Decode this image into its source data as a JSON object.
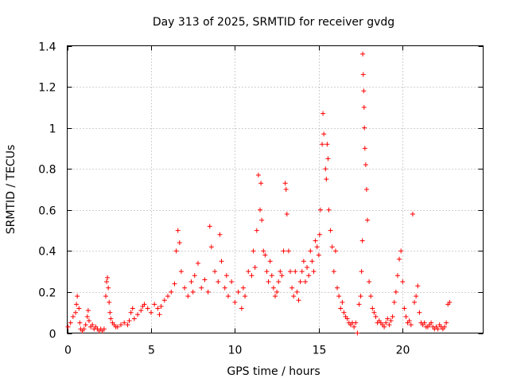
{
  "chart_data": {
    "type": "scatter",
    "title": "Day 313 of 2025, SRMTID for receiver gvdg",
    "xlabel": "GPS time / hours",
    "ylabel": "SRMTID / TECUs",
    "xlim": [
      0,
      24.8
    ],
    "ylim": [
      0,
      1.4
    ],
    "x_ticks": [
      0,
      5,
      10,
      15,
      20
    ],
    "x_tick_labels": [
      "0",
      "5",
      "10",
      "15",
      "20"
    ],
    "y_ticks": [
      0,
      0.2,
      0.4,
      0.6,
      0.8,
      1,
      1.2,
      1.4
    ],
    "y_tick_labels": [
      "0",
      "0.2",
      "0.4",
      "0.6",
      "0.8",
      "1",
      "1.2",
      "1.4"
    ],
    "grid": true,
    "marker": "+",
    "marker_color": "#ff0000",
    "series": [
      {
        "name": "SRMTID",
        "x": [
          0.05,
          0.2,
          0.35,
          0.5,
          0.55,
          0.6,
          0.7,
          0.75,
          0.8,
          0.9,
          1.0,
          1.1,
          1.2,
          1.25,
          1.3,
          1.4,
          1.5,
          1.6,
          1.7,
          1.8,
          1.9,
          2.0,
          2.1,
          2.2,
          2.3,
          2.35,
          2.4,
          2.45,
          2.5,
          2.55,
          2.6,
          2.7,
          2.8,
          2.9,
          3.0,
          3.2,
          3.4,
          3.6,
          3.7,
          3.8,
          3.9,
          4.0,
          4.2,
          4.4,
          4.5,
          4.6,
          4.8,
          5.0,
          5.2,
          5.4,
          5.5,
          5.6,
          5.8,
          6.0,
          6.2,
          6.4,
          6.5,
          6.6,
          6.7,
          6.8,
          7.0,
          7.2,
          7.4,
          7.5,
          7.6,
          7.8,
          8.0,
          8.2,
          8.4,
          8.5,
          8.6,
          8.8,
          9.0,
          9.1,
          9.2,
          9.4,
          9.5,
          9.6,
          9.8,
          10.0,
          10.2,
          10.4,
          10.5,
          10.6,
          10.8,
          11.0,
          11.1,
          11.2,
          11.3,
          11.4,
          11.5,
          11.55,
          11.6,
          11.7,
          11.8,
          11.9,
          12.0,
          12.1,
          12.2,
          12.3,
          12.4,
          12.5,
          12.6,
          12.7,
          12.8,
          12.9,
          13.0,
          13.05,
          13.1,
          13.2,
          13.3,
          13.4,
          13.5,
          13.6,
          13.7,
          13.8,
          13.9,
          14.0,
          14.1,
          14.2,
          14.3,
          14.4,
          14.5,
          14.6,
          14.7,
          14.8,
          14.9,
          15.0,
          15.05,
          15.1,
          15.2,
          15.25,
          15.3,
          15.4,
          15.45,
          15.5,
          15.55,
          15.6,
          15.7,
          15.8,
          15.9,
          16.0,
          16.1,
          16.2,
          16.3,
          16.4,
          16.5,
          16.6,
          16.7,
          16.8,
          16.9,
          17.0,
          17.1,
          17.2,
          17.3,
          17.4,
          17.5,
          17.55,
          17.6,
          17.62,
          17.65,
          17.68,
          17.7,
          17.72,
          17.75,
          17.8,
          17.85,
          17.9,
          18.0,
          18.1,
          18.2,
          18.3,
          18.4,
          18.5,
          18.6,
          18.7,
          18.8,
          18.9,
          19.0,
          19.1,
          19.2,
          19.3,
          19.4,
          19.5,
          19.6,
          19.7,
          19.8,
          19.9,
          20.0,
          20.1,
          20.2,
          20.3,
          20.4,
          20.5,
          20.6,
          20.7,
          20.8,
          20.9,
          21.0,
          21.1,
          21.2,
          21.3,
          21.4,
          21.5,
          21.6,
          21.7,
          21.8,
          21.9,
          22.0,
          22.1,
          22.2,
          22.3,
          22.4,
          22.5,
          22.6,
          22.7,
          22.8
        ],
        "y": [
          0.03,
          0.05,
          0.08,
          0.1,
          0.14,
          0.18,
          0.12,
          0.05,
          0.02,
          0.01,
          0.02,
          0.04,
          0.08,
          0.11,
          0.06,
          0.03,
          0.04,
          0.02,
          0.03,
          0.02,
          0.01,
          0.02,
          0.01,
          0.02,
          0.18,
          0.25,
          0.27,
          0.22,
          0.15,
          0.1,
          0.07,
          0.05,
          0.04,
          0.03,
          0.03,
          0.04,
          0.05,
          0.04,
          0.06,
          0.1,
          0.12,
          0.07,
          0.09,
          0.11,
          0.13,
          0.14,
          0.12,
          0.1,
          0.14,
          0.12,
          0.09,
          0.13,
          0.16,
          0.18,
          0.2,
          0.24,
          0.4,
          0.5,
          0.44,
          0.3,
          0.22,
          0.18,
          0.25,
          0.2,
          0.28,
          0.34,
          0.22,
          0.26,
          0.2,
          0.52,
          0.42,
          0.3,
          0.25,
          0.48,
          0.35,
          0.22,
          0.28,
          0.18,
          0.25,
          0.15,
          0.2,
          0.12,
          0.22,
          0.18,
          0.3,
          0.28,
          0.4,
          0.32,
          0.5,
          0.77,
          0.6,
          0.73,
          0.55,
          0.4,
          0.38,
          0.3,
          0.25,
          0.35,
          0.28,
          0.22,
          0.18,
          0.2,
          0.25,
          0.3,
          0.28,
          0.4,
          0.73,
          0.7,
          0.58,
          0.4,
          0.3,
          0.22,
          0.18,
          0.3,
          0.2,
          0.16,
          0.25,
          0.3,
          0.35,
          0.25,
          0.32,
          0.28,
          0.4,
          0.35,
          0.3,
          0.45,
          0.42,
          0.38,
          0.48,
          0.6,
          0.92,
          1.07,
          0.97,
          0.8,
          0.75,
          0.92,
          0.85,
          0.6,
          0.5,
          0.42,
          0.3,
          0.4,
          0.22,
          0.18,
          0.12,
          0.15,
          0.1,
          0.08,
          0.07,
          0.05,
          0.04,
          0.05,
          0.03,
          0.05,
          0.0,
          0.14,
          0.18,
          0.3,
          0.45,
          1.36,
          1.26,
          1.18,
          1.1,
          1.0,
          0.9,
          0.82,
          0.7,
          0.55,
          0.25,
          0.18,
          0.12,
          0.1,
          0.08,
          0.05,
          0.06,
          0.05,
          0.04,
          0.03,
          0.05,
          0.07,
          0.04,
          0.06,
          0.08,
          0.15,
          0.2,
          0.28,
          0.36,
          0.4,
          0.25,
          0.12,
          0.08,
          0.05,
          0.06,
          0.04,
          0.58,
          0.15,
          0.18,
          0.23,
          0.1,
          0.05,
          0.04,
          0.05,
          0.03,
          0.03,
          0.04,
          0.05,
          0.03,
          0.02,
          0.03,
          0.02,
          0.04,
          0.03,
          0.02,
          0.03,
          0.05,
          0.14,
          0.15
        ]
      }
    ]
  }
}
